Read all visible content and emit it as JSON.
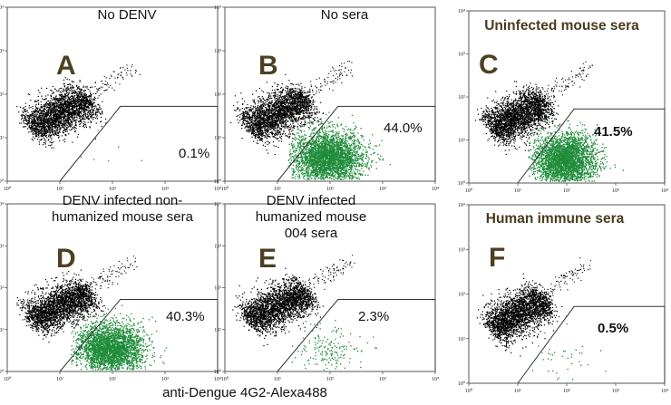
{
  "figure": {
    "x_axis_label": "anti-Dengue 4G2-Alexa488",
    "tick_labels": [
      "10⁰",
      "10¹",
      "10²",
      "10³",
      "10⁴"
    ]
  },
  "colors": {
    "negative_events": "#000000",
    "positive_events": "#1f8c3a",
    "gate": "#333333",
    "letter": "#4d3f22",
    "bold_title": "#4a3a1c"
  },
  "chart_data": [
    {
      "type": "scatter",
      "panel": "A",
      "title": "No DENV",
      "gate_percent": "0.1%",
      "percent_value": 0.1,
      "x_scale": "log",
      "y_scale": "log",
      "xlim": [
        1,
        10000
      ],
      "ylim": [
        1,
        10000
      ]
    },
    {
      "type": "scatter",
      "panel": "B",
      "title": "No sera",
      "gate_percent": "44.0%",
      "percent_value": 44.0,
      "x_scale": "log",
      "y_scale": "log",
      "xlim": [
        1,
        10000
      ],
      "ylim": [
        1,
        10000
      ]
    },
    {
      "type": "scatter",
      "panel": "C",
      "title": "Uninfected mouse sera",
      "gate_percent": "41.5%",
      "percent_value": 41.5,
      "x_scale": "log",
      "y_scale": "log",
      "xlim": [
        1,
        10000
      ],
      "ylim": [
        1,
        10000
      ]
    },
    {
      "type": "scatter",
      "panel": "D",
      "title": "DENV infected non-\nhumanized mouse sera",
      "gate_percent": "40.3%",
      "percent_value": 40.3,
      "x_scale": "log",
      "y_scale": "log",
      "xlim": [
        1,
        10000
      ],
      "ylim": [
        1,
        10000
      ]
    },
    {
      "type": "scatter",
      "panel": "E",
      "title": "DENV infected\nhumanized mouse\n004 sera",
      "gate_percent": "2.3%",
      "percent_value": 2.3,
      "x_scale": "log",
      "y_scale": "log",
      "xlim": [
        1,
        10000
      ],
      "ylim": [
        1,
        10000
      ]
    },
    {
      "type": "scatter",
      "panel": "F",
      "title": "Human immune sera",
      "gate_percent": "0.5%",
      "percent_value": 0.5,
      "x_scale": "log",
      "y_scale": "log",
      "xlim": [
        1,
        10000
      ],
      "ylim": [
        1,
        10000
      ]
    }
  ]
}
